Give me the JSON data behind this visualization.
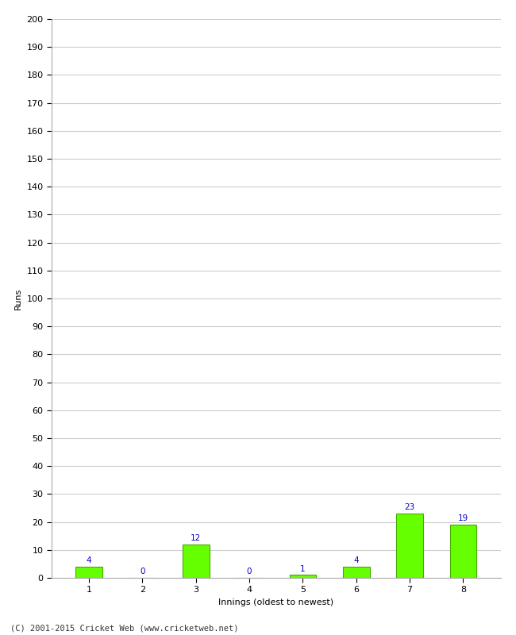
{
  "xlabel": "Innings (oldest to newest)",
  "ylabel": "Runs",
  "categories": [
    "1",
    "2",
    "3",
    "4",
    "5",
    "6",
    "7",
    "8"
  ],
  "values": [
    4,
    0,
    12,
    0,
    1,
    4,
    23,
    19
  ],
  "bar_color": "#66ff00",
  "bar_edge_color": "#44aa00",
  "label_color": "#0000cc",
  "ylim": [
    0,
    200
  ],
  "yticks": [
    0,
    10,
    20,
    30,
    40,
    50,
    60,
    70,
    80,
    90,
    100,
    110,
    120,
    130,
    140,
    150,
    160,
    170,
    180,
    190,
    200
  ],
  "background_color": "#ffffff",
  "grid_color": "#cccccc",
  "footer_text": "(C) 2001-2015 Cricket Web (www.cricketweb.net)",
  "label_fontsize": 7.5,
  "axis_label_fontsize": 8,
  "tick_fontsize": 8,
  "footer_fontsize": 7.5
}
